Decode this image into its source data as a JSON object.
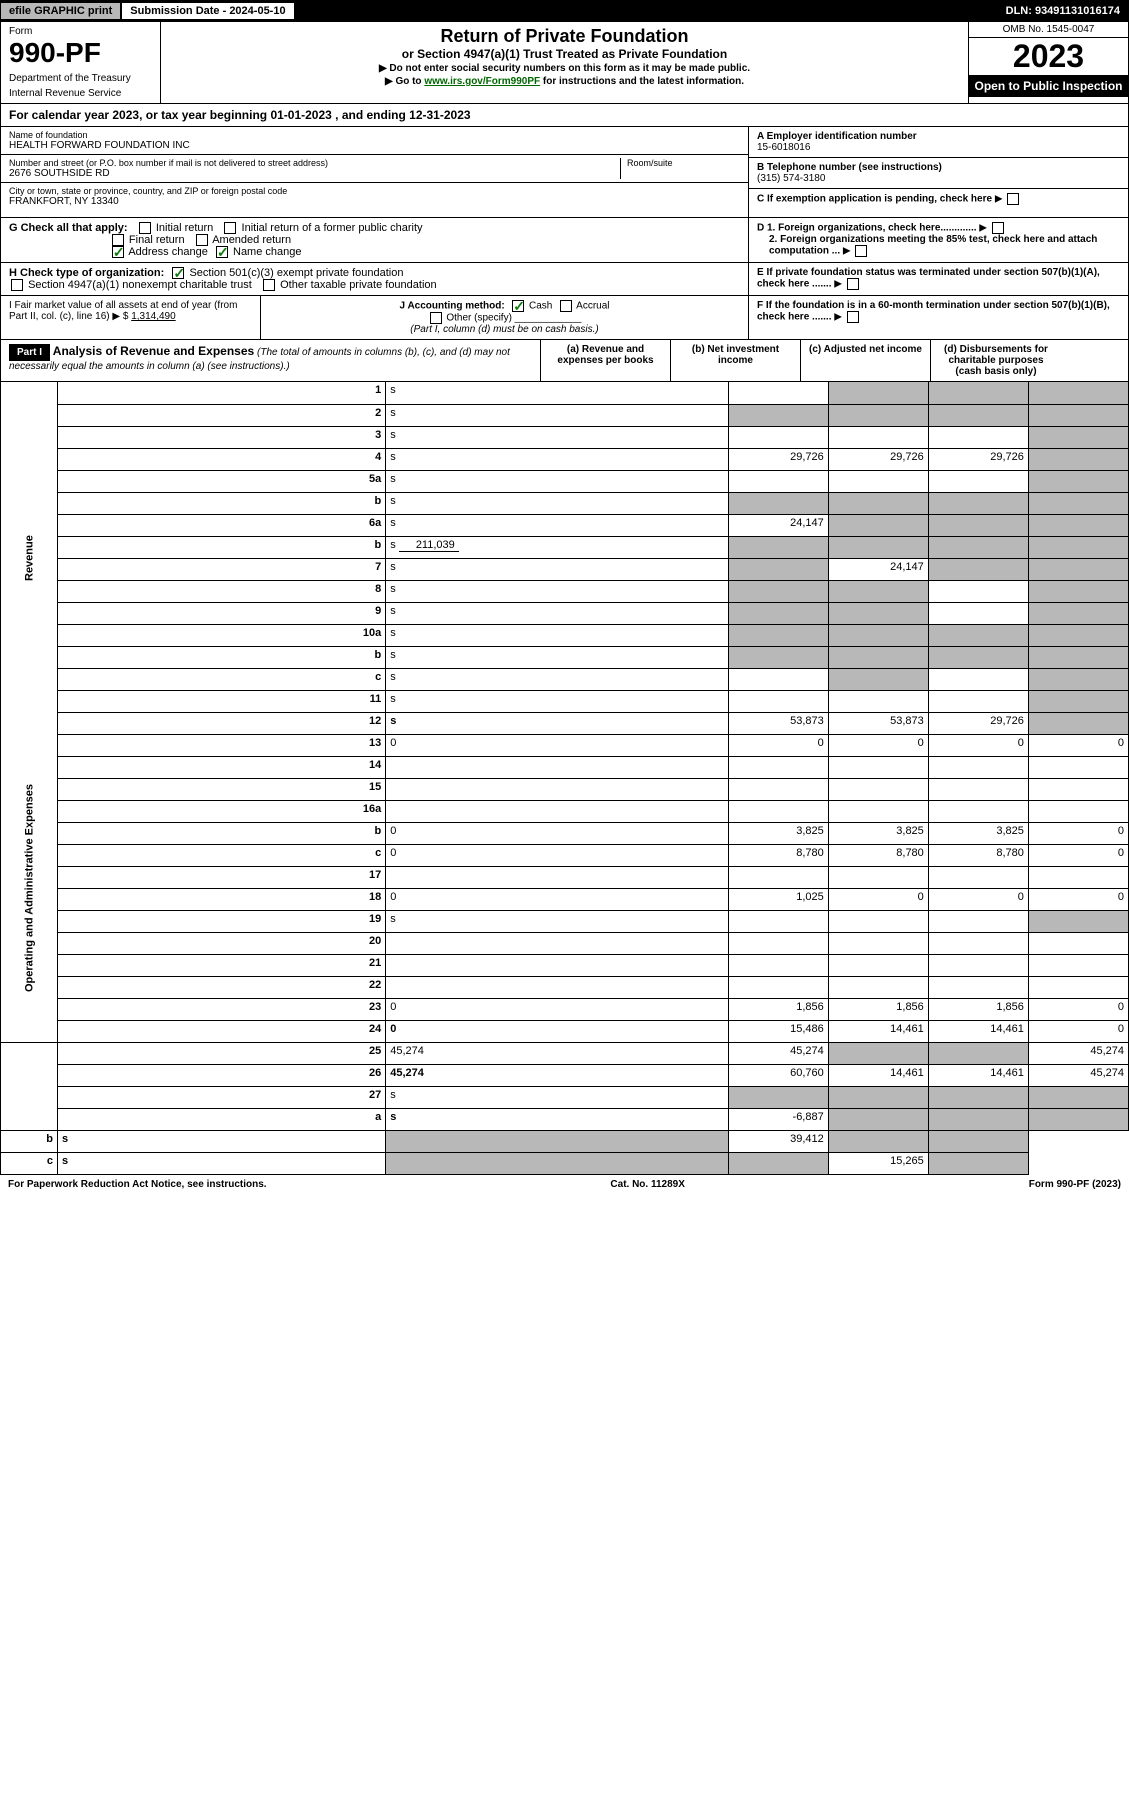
{
  "topbar": {
    "efile": "efile GRAPHIC print",
    "subdate": "Submission Date - 2024-05-10",
    "dln": "DLN: 93491131016174"
  },
  "header": {
    "form_word": "Form",
    "form_no": "990-PF",
    "dept": "Department of the Treasury",
    "irs": "Internal Revenue Service",
    "title": "Return of Private Foundation",
    "subtitle": "or Section 4947(a)(1) Trust Treated as Private Foundation",
    "instr1": "▶ Do not enter social security numbers on this form as it may be made public.",
    "instr2_pre": "▶ Go to ",
    "instr2_link": "www.irs.gov/Form990PF",
    "instr2_post": " for instructions and the latest information.",
    "omb": "OMB No. 1545-0047",
    "year": "2023",
    "open": "Open to Public Inspection"
  },
  "calyear": "For calendar year 2023, or tax year beginning 01-01-2023                         , and ending 12-31-2023",
  "entity": {
    "name_label": "Name of foundation",
    "name": "HEALTH FORWARD FOUNDATION INC",
    "addr_label": "Number and street (or P.O. box number if mail is not delivered to street address)",
    "addr": "2676 SOUTHSIDE RD",
    "room_label": "Room/suite",
    "city_label": "City or town, state or province, country, and ZIP or foreign postal code",
    "city": "FRANKFORT, NY  13340",
    "a_label": "A Employer identification number",
    "a_val": "15-6018016",
    "b_label": "B Telephone number (see instructions)",
    "b_val": "(315) 574-3180",
    "c_label": "C If exemption application is pending, check here"
  },
  "g": {
    "label": "G Check all that apply:",
    "opts": [
      "Initial return",
      "Initial return of a former public charity",
      "Final return",
      "Amended return",
      "Address change",
      "Name change"
    ]
  },
  "d": {
    "d1": "D 1. Foreign organizations, check here.............",
    "d2": "2. Foreign organizations meeting the 85% test, check here and attach computation ..."
  },
  "h": {
    "label": "H Check type of organization:",
    "opt1": "Section 501(c)(3) exempt private foundation",
    "opt2": "Section 4947(a)(1) nonexempt charitable trust",
    "opt3": "Other taxable private foundation"
  },
  "e": "E  If private foundation status was terminated under section 507(b)(1)(A), check here .......",
  "i": {
    "label": "I Fair market value of all assets at end of year (from Part II, col. (c), line 16) ▶ $",
    "val": "1,314,490"
  },
  "j": {
    "label": "J Accounting method:",
    "cash": "Cash",
    "accrual": "Accrual",
    "other": "Other (specify)",
    "note": "(Part I, column (d) must be on cash basis.)"
  },
  "f": "F  If the foundation is in a 60-month termination under section 507(b)(1)(B), check here .......",
  "part1": {
    "tag": "Part I",
    "title": "Analysis of Revenue and Expenses",
    "note": "(The total of amounts in columns (b), (c), and (d) may not necessarily equal the amounts in column (a) (see instructions).)",
    "cols": {
      "a": "(a) Revenue and expenses per books",
      "b": "(b) Net investment income",
      "c": "(c) Adjusted net income",
      "d": "(d) Disbursements for charitable purposes (cash basis only)"
    }
  },
  "sides": {
    "rev": "Revenue",
    "exp": "Operating and Administrative Expenses"
  },
  "rows": [
    {
      "n": "1",
      "d": "s",
      "a": "",
      "b": "s",
      "c": "s"
    },
    {
      "n": "2",
      "d": "s",
      "a": "s",
      "b": "s",
      "c": "s"
    },
    {
      "n": "3",
      "d": "s",
      "a": "",
      "b": "",
      "c": ""
    },
    {
      "n": "4",
      "d": "s",
      "a": "29,726",
      "b": "29,726",
      "c": "29,726"
    },
    {
      "n": "5a",
      "d": "s",
      "a": "",
      "b": "",
      "c": ""
    },
    {
      "n": "b",
      "d": "s",
      "a": "s",
      "b": "s",
      "c": "s"
    },
    {
      "n": "6a",
      "d": "s",
      "a": "24,147",
      "b": "s",
      "c": "s"
    },
    {
      "n": "b",
      "d": "s",
      "sub": "211,039",
      "a": "s",
      "b": "s",
      "c": "s"
    },
    {
      "n": "7",
      "d": "s",
      "a": "s",
      "b": "24,147",
      "c": "s"
    },
    {
      "n": "8",
      "d": "s",
      "a": "s",
      "b": "s",
      "c": ""
    },
    {
      "n": "9",
      "d": "s",
      "a": "s",
      "b": "s",
      "c": ""
    },
    {
      "n": "10a",
      "d": "s",
      "a": "s",
      "b": "s",
      "c": "s"
    },
    {
      "n": "b",
      "d": "s",
      "a": "s",
      "b": "s",
      "c": "s"
    },
    {
      "n": "c",
      "d": "s",
      "a": "",
      "b": "s",
      "c": ""
    },
    {
      "n": "11",
      "d": "s",
      "a": "",
      "b": "",
      "c": ""
    },
    {
      "n": "12",
      "d": "s",
      "bold": true,
      "a": "53,873",
      "b": "53,873",
      "c": "29,726"
    },
    {
      "n": "13",
      "d": "0",
      "a": "0",
      "b": "0",
      "c": "0"
    },
    {
      "n": "14",
      "d": "",
      "a": "",
      "b": "",
      "c": ""
    },
    {
      "n": "15",
      "d": "",
      "a": "",
      "b": "",
      "c": ""
    },
    {
      "n": "16a",
      "d": "",
      "a": "",
      "b": "",
      "c": ""
    },
    {
      "n": "b",
      "d": "0",
      "a": "3,825",
      "b": "3,825",
      "c": "3,825"
    },
    {
      "n": "c",
      "d": "0",
      "a": "8,780",
      "b": "8,780",
      "c": "8,780"
    },
    {
      "n": "17",
      "d": "",
      "a": "",
      "b": "",
      "c": ""
    },
    {
      "n": "18",
      "d": "0",
      "a": "1,025",
      "b": "0",
      "c": "0"
    },
    {
      "n": "19",
      "d": "s",
      "a": "",
      "b": "",
      "c": ""
    },
    {
      "n": "20",
      "d": "",
      "a": "",
      "b": "",
      "c": ""
    },
    {
      "n": "21",
      "d": "",
      "a": "",
      "b": "",
      "c": ""
    },
    {
      "n": "22",
      "d": "",
      "a": "",
      "b": "",
      "c": ""
    },
    {
      "n": "23",
      "d": "0",
      "a": "1,856",
      "b": "1,856",
      "c": "1,856"
    },
    {
      "n": "24",
      "d": "0",
      "bold": true,
      "a": "15,486",
      "b": "14,461",
      "c": "14,461"
    },
    {
      "n": "25",
      "d": "45,274",
      "a": "45,274",
      "b": "s",
      "c": "s"
    },
    {
      "n": "26",
      "d": "45,274",
      "bold": true,
      "a": "60,760",
      "b": "14,461",
      "c": "14,461"
    },
    {
      "n": "27",
      "d": "s",
      "a": "s",
      "b": "s",
      "c": "s"
    },
    {
      "n": "a",
      "d": "s",
      "bold": true,
      "a": "-6,887",
      "b": "s",
      "c": "s"
    },
    {
      "n": "b",
      "d": "s",
      "bold": true,
      "a": "s",
      "b": "39,412",
      "c": "s"
    },
    {
      "n": "c",
      "d": "s",
      "bold": true,
      "a": "s",
      "b": "s",
      "c": "15,265"
    }
  ],
  "footer": {
    "left": "For Paperwork Reduction Act Notice, see instructions.",
    "mid": "Cat. No. 11289X",
    "right": "Form 990-PF (2023)"
  }
}
